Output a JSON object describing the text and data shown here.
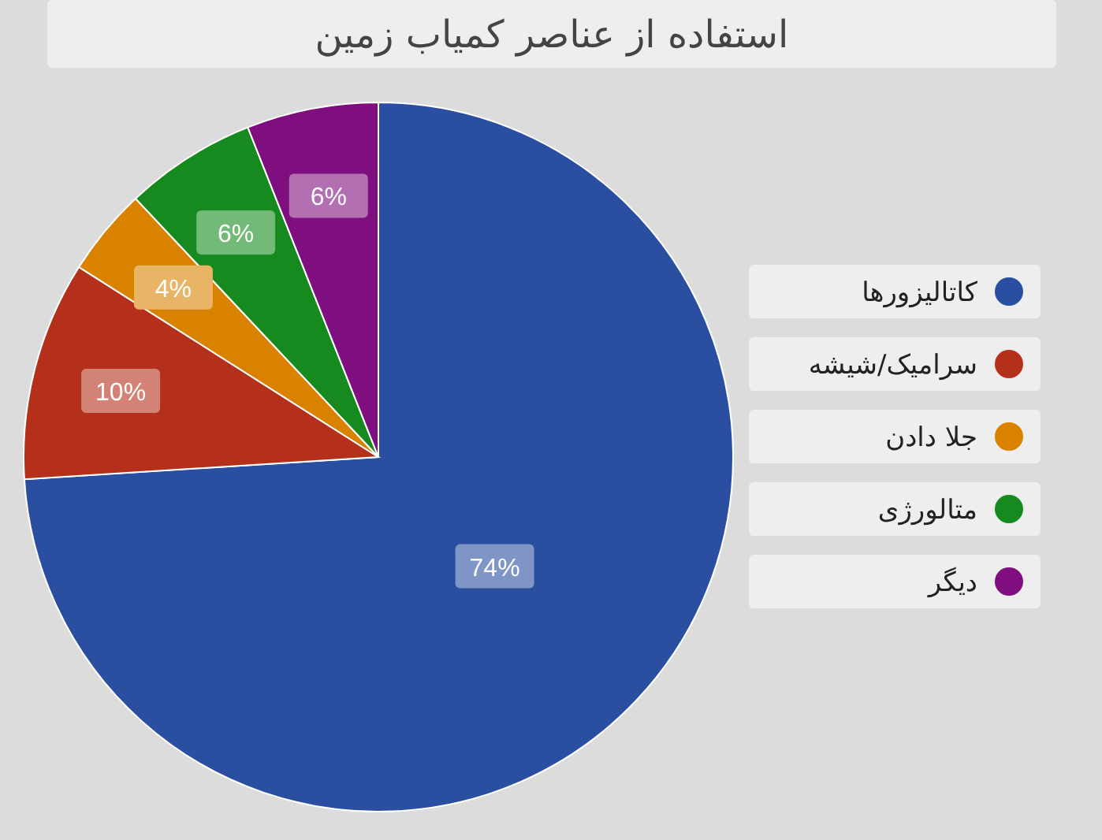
{
  "chart_data": {
    "type": "pie",
    "title": "استفاده از عناصر کمیاب زمین",
    "categories": [
      "کاتالیزورها",
      "سرامیک/شیشه",
      "جلا دادن",
      "متالورژی",
      "دیگر"
    ],
    "values": [
      74,
      10,
      4,
      6,
      6
    ],
    "value_labels": [
      "74%",
      "10%",
      "4%",
      "6%",
      "6%"
    ],
    "colors": [
      "#2a4fa0",
      "#b5301a",
      "#d98200",
      "#168a1e",
      "#7f0f7f"
    ],
    "legend": "right"
  }
}
